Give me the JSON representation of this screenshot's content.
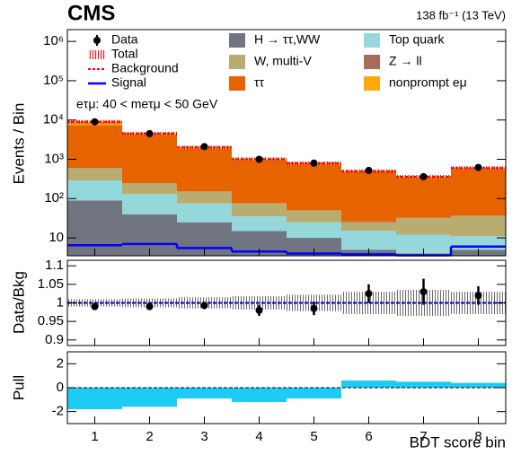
{
  "chart_data": [
    {
      "type": "stacked_histogram",
      "title": "CMS",
      "subtitle": "138 fb⁻¹ (13 TeV)",
      "ylabel": "Events / Bin",
      "annotation": "eτμ: 40 < meτμ < 50 GeV",
      "log_scale": true,
      "ylim": [
        3.5,
        2000000
      ],
      "yticks": [
        10,
        {
          "value": 100,
          "label": "10²"
        },
        {
          "value": 1000,
          "label": "10³"
        },
        {
          "value": 10000,
          "label": "10⁴"
        },
        {
          "value": 100000,
          "label": "10⁵"
        },
        {
          "value": 1000000,
          "label": "10⁶"
        }
      ],
      "series": [
        {
          "name": "H → ττ,WW",
          "color": "#717581",
          "values": [
            90,
            40,
            25,
            15,
            10,
            5,
            4,
            5
          ]
        },
        {
          "name": "Top quark",
          "color": "#94d8dc",
          "values": [
            200,
            90,
            50,
            20,
            15,
            10,
            8,
            6
          ]
        },
        {
          "name": "W, multi-V",
          "color": "#b9ac70",
          "values": [
            300,
            110,
            75,
            40,
            25,
            10,
            20,
            25
          ]
        },
        {
          "name": "Z → ll",
          "color": "#a96b59",
          "values": [
            10,
            5,
            3,
            2,
            1,
            1,
            1,
            1
          ]
        },
        {
          "name": "ττ",
          "color": "#e76300",
          "values": [
            6800,
            3900,
            1700,
            850,
            680,
            440,
            300,
            520
          ]
        },
        {
          "name": "nonprompt eμ",
          "color": "#ffa90e",
          "values": [
            1600,
            350,
            150,
            80,
            60,
            30,
            25,
            40
          ]
        }
      ],
      "data": {
        "name": "Data",
        "values": [
          9000,
          4500,
          2100,
          1000,
          800,
          520,
          360,
          620
        ]
      },
      "total": {
        "name": "Total",
        "color": "#e41a1c"
      },
      "background": {
        "name": "Background",
        "color": "#ff0000"
      },
      "signal": {
        "name": "Signal",
        "color": "#0000ff",
        "values": [
          6.5,
          7,
          5.5,
          4.5,
          4,
          3.8,
          3.6,
          6
        ]
      }
    },
    {
      "type": "ratio",
      "ylabel": "Data/Bkg",
      "ylim": [
        0.885,
        1.115
      ],
      "yticks": [
        0.9,
        0.95,
        1,
        1.05,
        1.1
      ],
      "values": [
        0.99,
        0.99,
        0.993,
        0.98,
        0.985,
        1.025,
        1.03,
        1.02
      ],
      "errors": [
        0.005,
        0.007,
        0.01,
        0.015,
        0.018,
        0.025,
        0.035,
        0.025
      ],
      "uncertainty": [
        0.01,
        0.012,
        0.015,
        0.018,
        0.022,
        0.03,
        0.035,
        0.03
      ]
    },
    {
      "type": "bar",
      "ylabel": "Pull",
      "xlabel": "BDT score bin",
      "color": "#1ecbf5",
      "categories": [
        "1",
        "2",
        "3",
        "4",
        "5",
        "6",
        "7",
        "8"
      ],
      "ylim": [
        -3,
        3
      ],
      "yticks": [
        -2,
        0,
        2
      ],
      "values": [
        -1.8,
        -1.6,
        -0.9,
        -1.2,
        -0.9,
        0.6,
        0.5,
        0.4
      ]
    }
  ]
}
